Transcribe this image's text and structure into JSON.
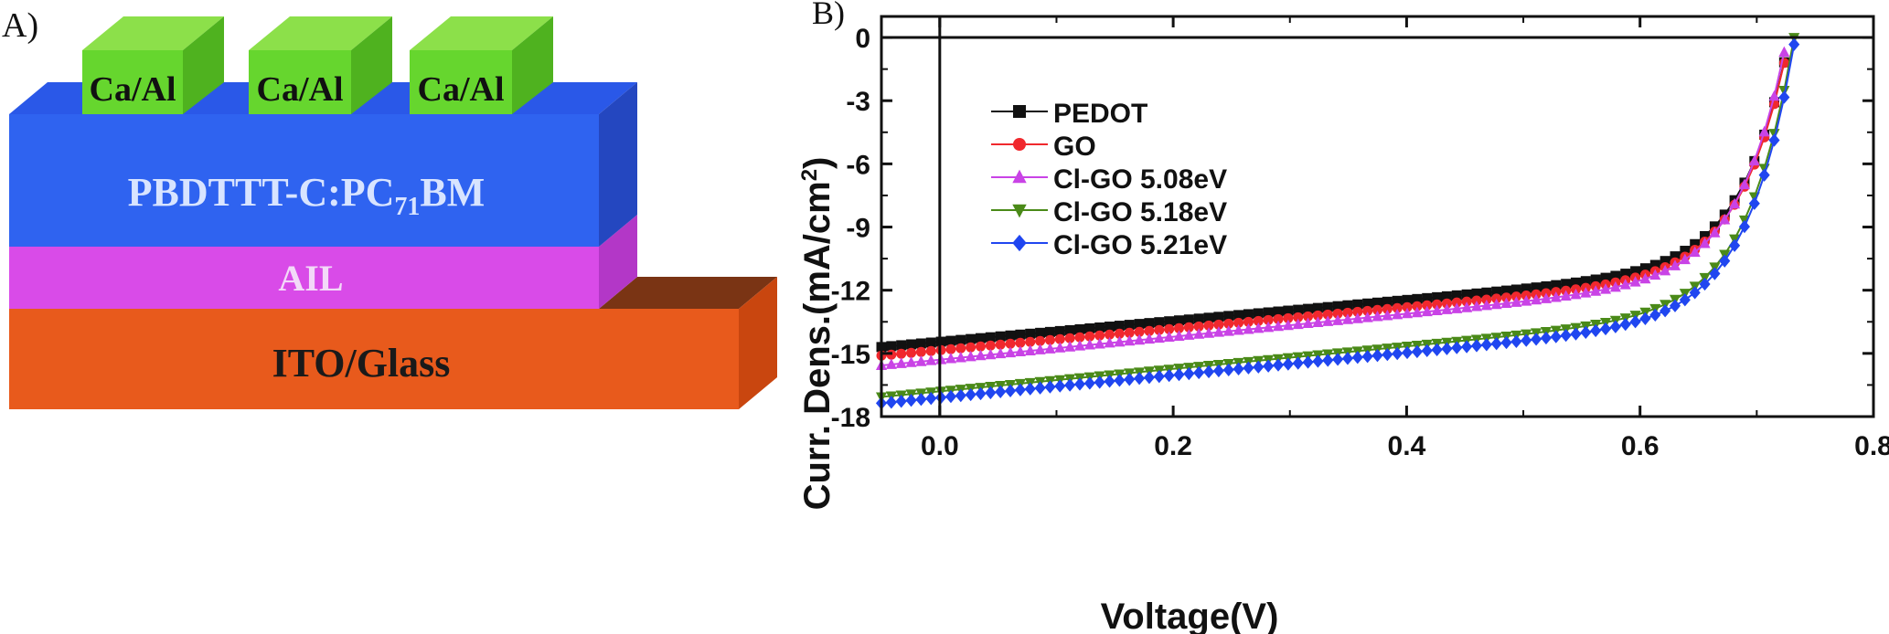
{
  "panel_a": {
    "label": "A)",
    "electrode_label": "Ca/Al",
    "active_layer_main": "PBDTTT-C:PC",
    "active_layer_sub": "71",
    "active_layer_end": "BM",
    "interlayer": "AIL",
    "substrate": "ITO/Glass",
    "colors": {
      "electrode_front": "#66d62e",
      "active_front": "#2f63f0",
      "interlayer_front": "#d94be8",
      "substrate_front": "#e85a1c"
    }
  },
  "panel_b": {
    "label": "B)"
  },
  "chart_data": {
    "type": "line",
    "xlabel": "Voltage(V)",
    "ylabel_main": "Curr. Dens.(mA/cm",
    "ylabel_sup": "2",
    "ylabel_end": ")",
    "xlim": [
      -0.05,
      0.8
    ],
    "ylim": [
      -18,
      1
    ],
    "xticks": [
      0.0,
      0.2,
      0.4,
      0.6,
      0.8
    ],
    "xtick_labels": [
      "0.0",
      "0.2",
      "0.4",
      "0.6",
      "0.8"
    ],
    "yticks": [
      0,
      -3,
      -6,
      -9,
      -12,
      -15,
      -18
    ],
    "ytick_labels": [
      "0",
      "-3",
      "-6",
      "-9",
      "-12",
      "-15",
      "-18"
    ],
    "grid": false,
    "legend_position": "upper-left",
    "series": [
      {
        "name": "PEDOT",
        "color": "#111111",
        "marker": "square",
        "jsc": -14.45,
        "voc": 0.728
      },
      {
        "name": "GO",
        "color": "#f0282d",
        "marker": "circle",
        "jsc": -14.85,
        "voc": 0.728
      },
      {
        "name": "Cl-GO  5.08eV",
        "color": "#c943e6",
        "marker": "triangle-up",
        "jsc": -15.3,
        "voc": 0.726
      },
      {
        "name": "Cl-GO  5.18eV",
        "color": "#4a8a18",
        "marker": "triangle-down",
        "jsc": -16.8,
        "voc": 0.732
      },
      {
        "name": "Cl-GO  5.21eV",
        "color": "#2046f0",
        "marker": "diamond",
        "jsc": -17.1,
        "voc": 0.733
      }
    ]
  }
}
